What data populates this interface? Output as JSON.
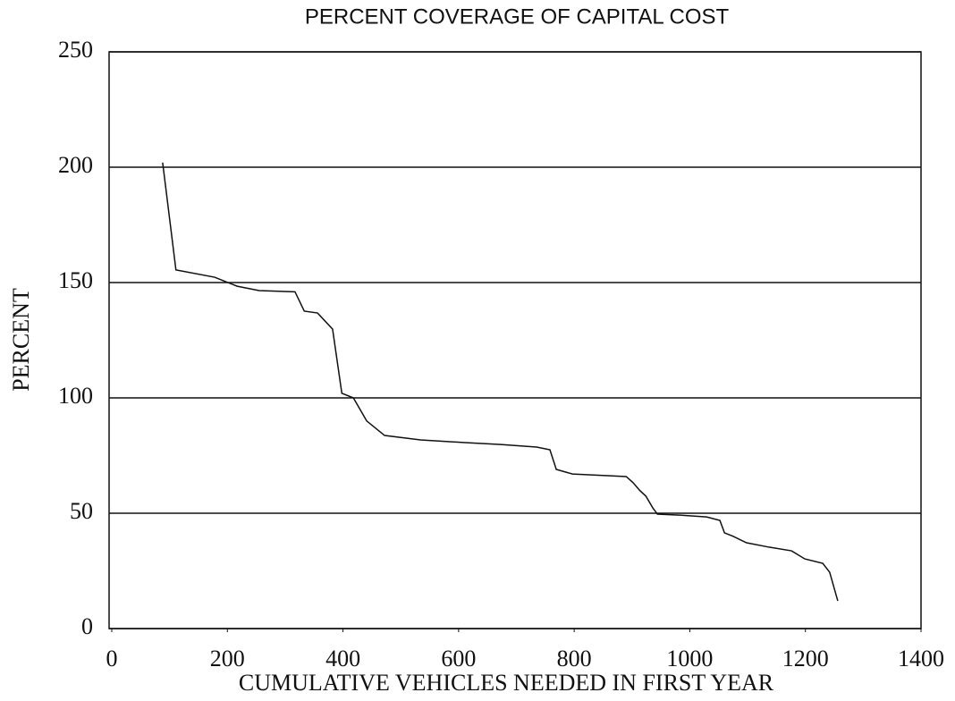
{
  "chart_data": {
    "type": "line",
    "title": "PERCENT COVERAGE OF CAPITAL COST",
    "x_label": "CUMULATIVE VEHICLES NEEDED IN FIRST YEAR",
    "y_label": "PERCENT",
    "x": [
      88,
      111,
      178,
      217,
      255,
      317,
      333,
      356,
      382,
      398,
      418,
      441,
      472,
      534,
      611,
      673,
      735,
      758,
      769,
      797,
      890,
      902,
      913,
      924,
      936,
      944,
      982,
      1029,
      1052,
      1060,
      1075,
      1098,
      1137,
      1176,
      1199,
      1230,
      1242,
      1256
    ],
    "series": [
      {
        "name": "Percent",
        "color": "#111111",
        "values": [
          202,
          155.5,
          152.3,
          148.4,
          146.5,
          146,
          137.6,
          136.8,
          129.8,
          102,
          100,
          90,
          83.7,
          81.8,
          80.6,
          79.8,
          78.7,
          77.5,
          69,
          67,
          65.9,
          63.2,
          60,
          57.4,
          52.3,
          49.6,
          49.2,
          48.4,
          46.9,
          41.5,
          40,
          37.2,
          35.3,
          33.7,
          30.2,
          28.3,
          24.4,
          12
        ]
      }
    ],
    "xlim": [
      0,
      1400
    ],
    "xticks": [
      0,
      200,
      400,
      600,
      800,
      1000,
      1200,
      1400
    ],
    "ylim": [
      0,
      250
    ],
    "yticks": [
      0,
      50,
      100,
      150,
      200,
      250
    ],
    "grid": true
  }
}
